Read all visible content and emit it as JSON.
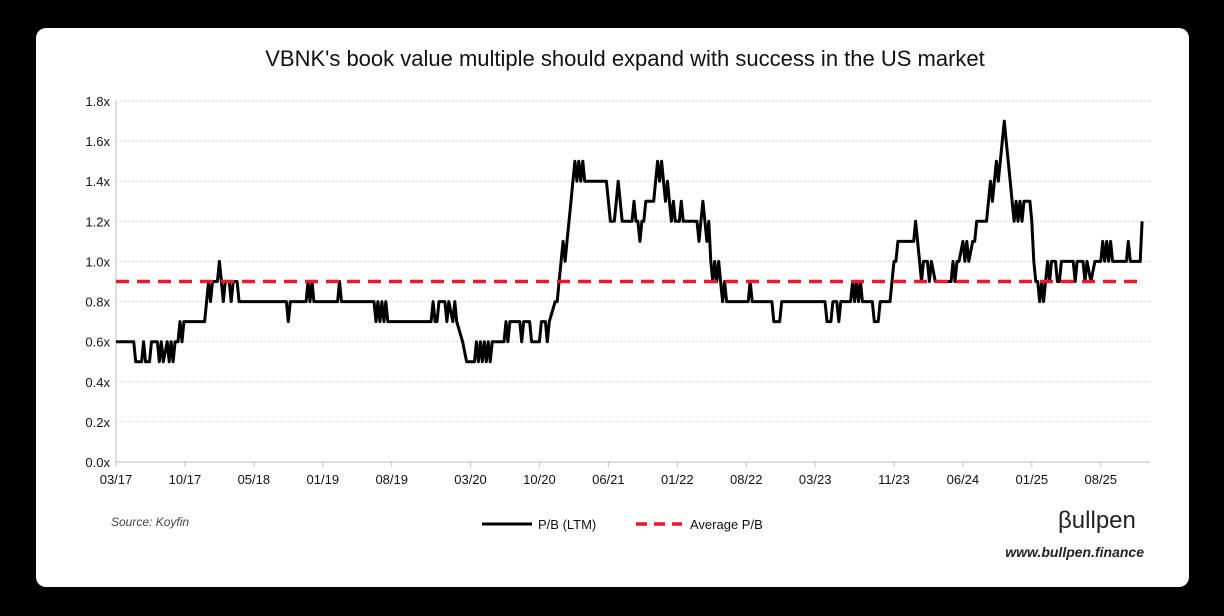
{
  "chart_data": {
    "type": "line",
    "title": "VBNK's book value multiple should expand with success in the US market",
    "xlabel": "",
    "ylabel": "",
    "ylim": [
      0,
      1.8
    ],
    "yticks": [
      0,
      0.2,
      0.4,
      0.6,
      0.8,
      1.0,
      1.2,
      1.4,
      1.6,
      1.8
    ],
    "ytick_labels": [
      "0.0x",
      "0.2x",
      "0.4x",
      "0.6x",
      "0.8x",
      "1.0x",
      "1.2x",
      "1.4x",
      "1.6x",
      "1.8x"
    ],
    "xlim": [
      0,
      105
    ],
    "xticks": [
      0,
      7,
      14,
      21,
      28,
      36,
      43,
      50,
      57,
      64,
      71,
      79,
      86,
      93,
      100
    ],
    "xtick_labels": [
      "03/17",
      "10/17",
      "05/18",
      "01/19",
      "08/19",
      "03/20",
      "10/20",
      "06/21",
      "01/22",
      "08/22",
      "03/23",
      "11/23",
      "06/24",
      "01/25",
      "08/25"
    ],
    "grid": true,
    "series": [
      {
        "name": "P/B (LTM)",
        "color": "#000000",
        "style": "solid",
        "points": [
          [
            0,
            0.6
          ],
          [
            1.8,
            0.6
          ],
          [
            2.0,
            0.5
          ],
          [
            2.6,
            0.5
          ],
          [
            2.8,
            0.6
          ],
          [
            3.0,
            0.5
          ],
          [
            3.4,
            0.5
          ],
          [
            3.6,
            0.6
          ],
          [
            4.2,
            0.6
          ],
          [
            4.4,
            0.5
          ],
          [
            4.6,
            0.6
          ],
          [
            4.8,
            0.5
          ],
          [
            5.2,
            0.6
          ],
          [
            5.4,
            0.5
          ],
          [
            5.6,
            0.6
          ],
          [
            5.8,
            0.5
          ],
          [
            6.0,
            0.6
          ],
          [
            6.3,
            0.6
          ],
          [
            6.5,
            0.7
          ],
          [
            6.7,
            0.6
          ],
          [
            6.9,
            0.7
          ],
          [
            8.0,
            0.7
          ],
          [
            9.0,
            0.7
          ],
          [
            9.2,
            0.8
          ],
          [
            9.4,
            0.9
          ],
          [
            9.6,
            0.8
          ],
          [
            9.8,
            0.9
          ],
          [
            10.3,
            0.9
          ],
          [
            10.5,
            1.0
          ],
          [
            10.7,
            0.9
          ],
          [
            10.9,
            0.8
          ],
          [
            11.1,
            0.9
          ],
          [
            11.5,
            0.9
          ],
          [
            11.7,
            0.8
          ],
          [
            11.9,
            0.9
          ],
          [
            12.3,
            0.9
          ],
          [
            12.5,
            0.8
          ],
          [
            17.3,
            0.8
          ],
          [
            17.5,
            0.7
          ],
          [
            17.7,
            0.8
          ],
          [
            19.3,
            0.8
          ],
          [
            19.5,
            0.9
          ],
          [
            19.7,
            0.8
          ],
          [
            19.9,
            0.9
          ],
          [
            20.1,
            0.8
          ],
          [
            22.5,
            0.8
          ],
          [
            22.7,
            0.9
          ],
          [
            22.9,
            0.8
          ],
          [
            26.2,
            0.8
          ],
          [
            26.4,
            0.7
          ],
          [
            26.6,
            0.8
          ],
          [
            26.8,
            0.7
          ],
          [
            27.0,
            0.8
          ],
          [
            27.2,
            0.7
          ],
          [
            27.4,
            0.8
          ],
          [
            27.6,
            0.7
          ],
          [
            32.0,
            0.7
          ],
          [
            32.2,
            0.8
          ],
          [
            32.4,
            0.7
          ],
          [
            32.6,
            0.7
          ],
          [
            32.8,
            0.8
          ],
          [
            33.4,
            0.8
          ],
          [
            33.6,
            0.7
          ],
          [
            33.8,
            0.8
          ],
          [
            34.2,
            0.7
          ],
          [
            34.4,
            0.8
          ],
          [
            34.6,
            0.7
          ],
          [
            35.2,
            0.6
          ],
          [
            35.6,
            0.5
          ],
          [
            36.4,
            0.5
          ],
          [
            36.6,
            0.6
          ],
          [
            36.8,
            0.5
          ],
          [
            37.0,
            0.6
          ],
          [
            37.2,
            0.5
          ],
          [
            37.4,
            0.6
          ],
          [
            37.6,
            0.5
          ],
          [
            37.8,
            0.6
          ],
          [
            38.0,
            0.5
          ],
          [
            38.2,
            0.6
          ],
          [
            39.4,
            0.6
          ],
          [
            39.6,
            0.7
          ],
          [
            39.8,
            0.6
          ],
          [
            40.0,
            0.7
          ],
          [
            41.0,
            0.7
          ],
          [
            41.2,
            0.6
          ],
          [
            41.4,
            0.7
          ],
          [
            42.0,
            0.7
          ],
          [
            42.2,
            0.6
          ],
          [
            43.0,
            0.6
          ],
          [
            43.2,
            0.7
          ],
          [
            43.6,
            0.7
          ],
          [
            43.8,
            0.6
          ],
          [
            44.0,
            0.7
          ],
          [
            44.6,
            0.8
          ],
          [
            44.8,
            0.8
          ],
          [
            45.0,
            0.9
          ],
          [
            45.2,
            1.0
          ],
          [
            45.4,
            1.1
          ],
          [
            45.6,
            1.0
          ],
          [
            45.8,
            1.1
          ],
          [
            46.0,
            1.2
          ],
          [
            46.2,
            1.3
          ],
          [
            46.4,
            1.4
          ],
          [
            46.6,
            1.5
          ],
          [
            46.8,
            1.4
          ],
          [
            47.0,
            1.5
          ],
          [
            47.2,
            1.4
          ],
          [
            47.4,
            1.5
          ],
          [
            47.6,
            1.4
          ],
          [
            48.4,
            1.4
          ],
          [
            49.8,
            1.4
          ],
          [
            50.0,
            1.3
          ],
          [
            50.2,
            1.2
          ],
          [
            50.6,
            1.2
          ],
          [
            50.8,
            1.3
          ],
          [
            51.0,
            1.4
          ],
          [
            51.2,
            1.3
          ],
          [
            51.4,
            1.2
          ],
          [
            52.4,
            1.2
          ],
          [
            52.6,
            1.3
          ],
          [
            52.8,
            1.2
          ],
          [
            53.0,
            1.2
          ],
          [
            53.2,
            1.1
          ],
          [
            53.4,
            1.2
          ],
          [
            53.6,
            1.2
          ],
          [
            53.8,
            1.3
          ],
          [
            54.6,
            1.3
          ],
          [
            54.8,
            1.4
          ],
          [
            55.0,
            1.5
          ],
          [
            55.2,
            1.4
          ],
          [
            55.4,
            1.5
          ],
          [
            55.6,
            1.4
          ],
          [
            55.8,
            1.3
          ],
          [
            56.0,
            1.4
          ],
          [
            56.2,
            1.3
          ],
          [
            56.4,
            1.2
          ],
          [
            56.6,
            1.3
          ],
          [
            56.8,
            1.2
          ],
          [
            57.2,
            1.2
          ],
          [
            57.4,
            1.3
          ],
          [
            57.6,
            1.2
          ],
          [
            59.0,
            1.2
          ],
          [
            59.2,
            1.1
          ],
          [
            59.4,
            1.2
          ],
          [
            59.6,
            1.3
          ],
          [
            59.8,
            1.2
          ],
          [
            60.0,
            1.1
          ],
          [
            60.2,
            1.2
          ],
          [
            60.4,
            1.0
          ],
          [
            60.6,
            0.9
          ],
          [
            60.8,
            1.0
          ],
          [
            61.0,
            0.9
          ],
          [
            61.2,
            1.0
          ],
          [
            61.4,
            0.9
          ],
          [
            61.6,
            0.8
          ],
          [
            61.8,
            0.9
          ],
          [
            62.0,
            0.8
          ],
          [
            64.2,
            0.8
          ],
          [
            64.4,
            0.9
          ],
          [
            64.6,
            0.8
          ],
          [
            66.6,
            0.8
          ],
          [
            66.8,
            0.7
          ],
          [
            67.4,
            0.7
          ],
          [
            67.6,
            0.8
          ],
          [
            72.0,
            0.8
          ],
          [
            72.2,
            0.7
          ],
          [
            72.6,
            0.7
          ],
          [
            72.8,
            0.8
          ],
          [
            73.2,
            0.8
          ],
          [
            73.4,
            0.7
          ],
          [
            73.6,
            0.8
          ],
          [
            74.6,
            0.8
          ],
          [
            74.8,
            0.9
          ],
          [
            75.0,
            0.8
          ],
          [
            75.2,
            0.9
          ],
          [
            75.4,
            0.8
          ],
          [
            75.6,
            0.9
          ],
          [
            75.8,
            0.8
          ],
          [
            76.8,
            0.8
          ],
          [
            77.0,
            0.7
          ],
          [
            77.4,
            0.7
          ],
          [
            77.6,
            0.8
          ],
          [
            78.6,
            0.8
          ],
          [
            78.8,
            0.9
          ],
          [
            79.0,
            1.0
          ],
          [
            79.2,
            1.0
          ],
          [
            79.4,
            1.1
          ],
          [
            80.8,
            1.1
          ],
          [
            81.0,
            1.1
          ],
          [
            81.2,
            1.2
          ],
          [
            81.4,
            1.1
          ],
          [
            81.6,
            1.0
          ],
          [
            81.8,
            0.9
          ],
          [
            82.0,
            1.0
          ],
          [
            82.4,
            1.0
          ],
          [
            82.6,
            0.9
          ],
          [
            82.8,
            1.0
          ],
          [
            83.2,
            0.9
          ],
          [
            83.6,
            0.9
          ],
          [
            84.8,
            0.9
          ],
          [
            85.0,
            1.0
          ],
          [
            85.2,
            0.9
          ],
          [
            85.4,
            1.0
          ],
          [
            85.6,
            1.0
          ],
          [
            86.0,
            1.1
          ],
          [
            86.2,
            1.0
          ],
          [
            86.4,
            1.1
          ],
          [
            86.6,
            1.0
          ],
          [
            87.0,
            1.1
          ],
          [
            87.2,
            1.1
          ],
          [
            87.4,
            1.2
          ],
          [
            88.4,
            1.2
          ],
          [
            88.6,
            1.3
          ],
          [
            88.8,
            1.4
          ],
          [
            89.0,
            1.3
          ],
          [
            89.2,
            1.4
          ],
          [
            89.4,
            1.5
          ],
          [
            89.6,
            1.4
          ],
          [
            89.8,
            1.5
          ],
          [
            90.0,
            1.6
          ],
          [
            90.2,
            1.7
          ],
          [
            90.4,
            1.6
          ],
          [
            90.6,
            1.5
          ],
          [
            90.8,
            1.4
          ],
          [
            91.0,
            1.3
          ],
          [
            91.2,
            1.2
          ],
          [
            91.4,
            1.3
          ],
          [
            91.6,
            1.2
          ],
          [
            91.8,
            1.3
          ],
          [
            92.0,
            1.2
          ],
          [
            92.2,
            1.3
          ],
          [
            92.8,
            1.3
          ],
          [
            93.0,
            1.2
          ],
          [
            93.2,
            1.0
          ],
          [
            93.4,
            0.9
          ],
          [
            93.6,
            0.9
          ],
          [
            93.8,
            0.8
          ],
          [
            94.0,
            0.9
          ],
          [
            94.2,
            0.8
          ],
          [
            94.4,
            0.9
          ],
          [
            94.6,
            1.0
          ],
          [
            94.8,
            0.9
          ],
          [
            95.0,
            1.0
          ],
          [
            95.4,
            1.0
          ],
          [
            95.6,
            0.9
          ],
          [
            95.8,
            0.9
          ],
          [
            96.0,
            1.0
          ],
          [
            97.2,
            1.0
          ],
          [
            97.4,
            0.9
          ],
          [
            97.6,
            1.0
          ],
          [
            98.2,
            1.0
          ],
          [
            98.4,
            0.9
          ],
          [
            98.6,
            1.0
          ],
          [
            99.0,
            0.9
          ],
          [
            99.4,
            1.0
          ],
          [
            100.0,
            1.0
          ],
          [
            100.2,
            1.1
          ],
          [
            100.4,
            1.0
          ],
          [
            100.6,
            1.1
          ],
          [
            100.8,
            1.0
          ],
          [
            101.0,
            1.1
          ],
          [
            101.2,
            1.0
          ],
          [
            101.4,
            1.0
          ],
          [
            102.6,
            1.0
          ],
          [
            102.8,
            1.1
          ],
          [
            103.0,
            1.0
          ],
          [
            103.6,
            1.0
          ],
          [
            104.0,
            1.0
          ],
          [
            104.2,
            1.2
          ]
        ]
      },
      {
        "name": "Average P/B",
        "color": "#e8192c",
        "style": "dashed",
        "points": [
          [
            0,
            0.9
          ],
          [
            104.2,
            0.9
          ]
        ]
      }
    ]
  },
  "source": "Source: Koyfin",
  "brand": "βullpen",
  "website": "www.bullpen.finance"
}
